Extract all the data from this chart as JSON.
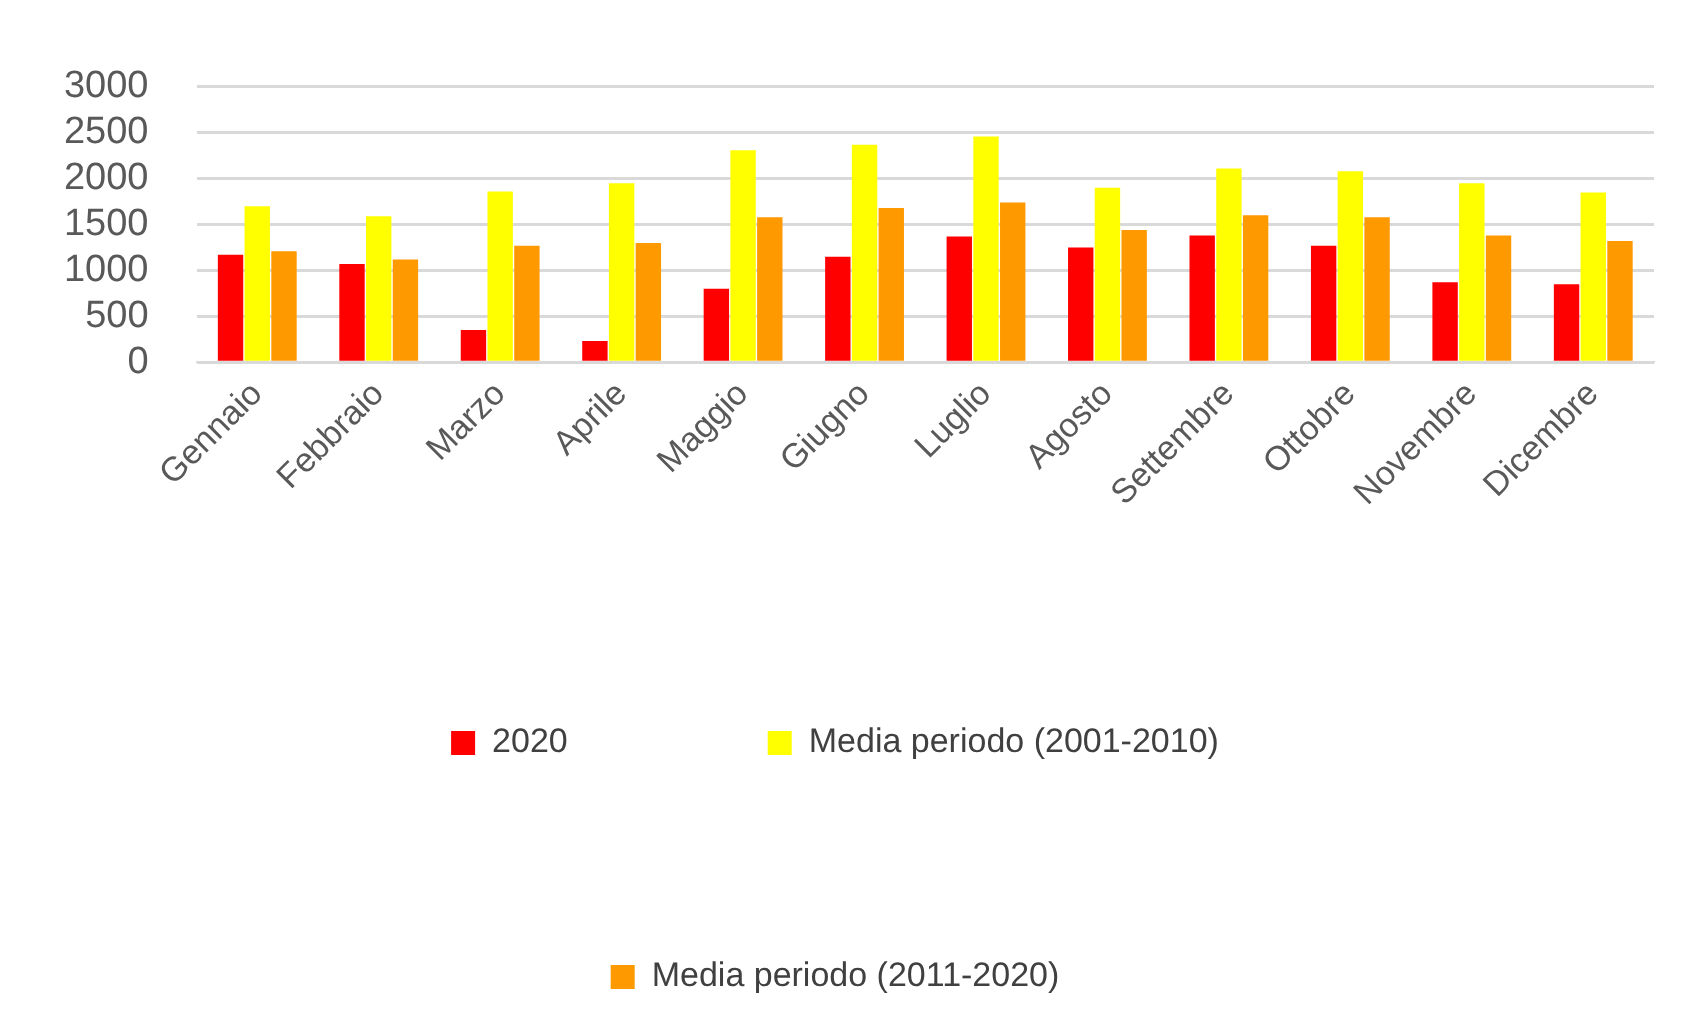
{
  "chart_data": {
    "type": "bar",
    "categories": [
      "Gennaio",
      "Febbraio",
      "Marzo",
      "Aprile",
      "Maggio",
      "Giugno",
      "Luglio",
      "Agosto",
      "Settembre",
      "Ottobre",
      "Novembre",
      "Dicembre"
    ],
    "series": [
      {
        "name": "2020",
        "color": "#ff0000",
        "values": [
          1170,
          1070,
          350,
          230,
          800,
          1150,
          1370,
          1250,
          1380,
          1270,
          870,
          850
        ]
      },
      {
        "name": "Media periodo (2001-2010)",
        "color": "#ffff00",
        "values": [
          1700,
          1590,
          1860,
          1950,
          2310,
          2370,
          2460,
          1900,
          2110,
          2080,
          1950,
          1850
        ]
      },
      {
        "name": "Media periodo (2011-2020)",
        "color": "#ff9900",
        "values": [
          1210,
          1120,
          1270,
          1300,
          1580,
          1680,
          1740,
          1440,
          1600,
          1580,
          1380,
          1320
        ]
      }
    ],
    "ylim": [
      0,
      3000
    ],
    "yticks": [
      0,
      500,
      1000,
      1500,
      2000,
      2500,
      3000
    ],
    "grid": "y",
    "legend": "bottom"
  }
}
